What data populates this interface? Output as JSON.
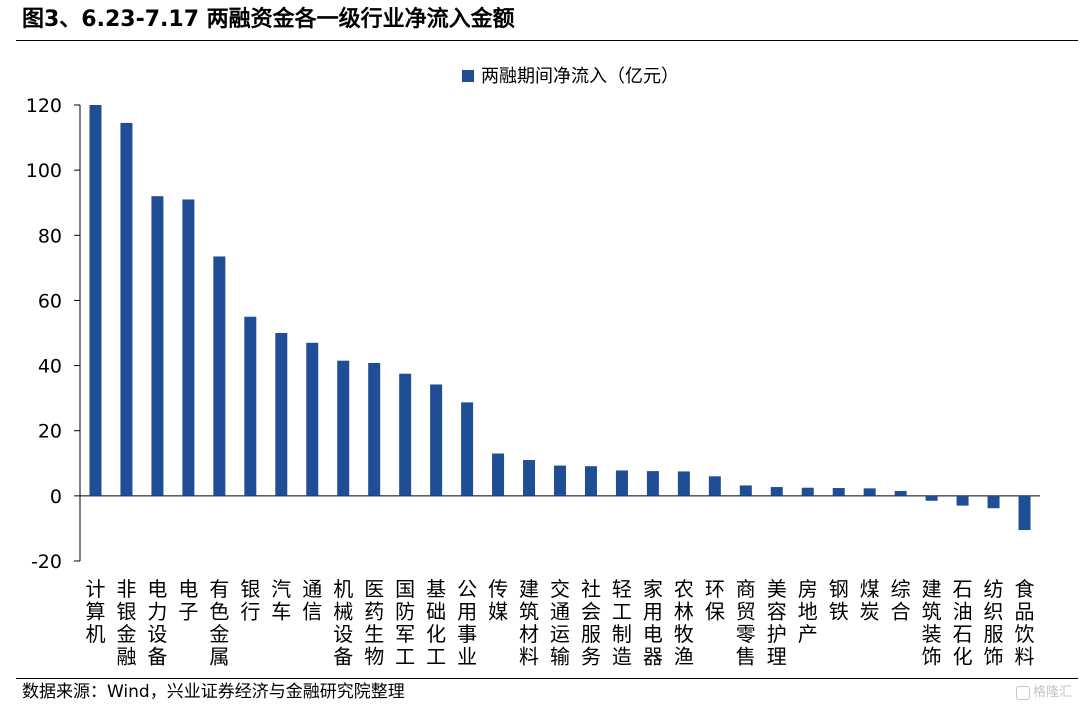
{
  "figure": {
    "title": "图3、6.23-7.17 两融资金各一级行业净流入金额",
    "source": "数据来源：Wind，兴业证券经济与金融研究院整理",
    "watermark": "格隆汇"
  },
  "chart_data": {
    "type": "bar",
    "title": "",
    "xlabel": "",
    "ylabel": "",
    "ylim": [
      -20,
      120
    ],
    "yticks": [
      -20,
      0,
      20,
      40,
      60,
      80,
      100,
      120
    ],
    "grid": false,
    "legend_position": "top-center",
    "bar_color": "#1f4e96",
    "categories": [
      "计算机",
      "非银金融",
      "电力设备",
      "电子",
      "有色金属",
      "银行",
      "汽车",
      "通信",
      "机械设备",
      "医药生物",
      "国防军工",
      "基础化工",
      "公用事业",
      "传媒",
      "建筑材料",
      "交通运输",
      "社会服务",
      "轻工制造",
      "家用电器",
      "农林牧渔",
      "环保",
      "商贸零售",
      "美容护理",
      "房地产",
      "钢铁",
      "煤炭",
      "综合",
      "建筑装饰",
      "石油石化",
      "纺织服饰",
      "食品饮料"
    ],
    "series": [
      {
        "name": "两融期间净流入（亿元）",
        "values": [
          120,
          114.5,
          92,
          91,
          73.5,
          55,
          50,
          47,
          41.5,
          40.8,
          37.5,
          34.2,
          28.7,
          13,
          11,
          9.3,
          9.1,
          7.8,
          7.6,
          7.5,
          6,
          3.2,
          2.7,
          2.5,
          2.4,
          2.3,
          1.5,
          -1.5,
          -3,
          -3.8,
          -10.5
        ]
      }
    ]
  }
}
